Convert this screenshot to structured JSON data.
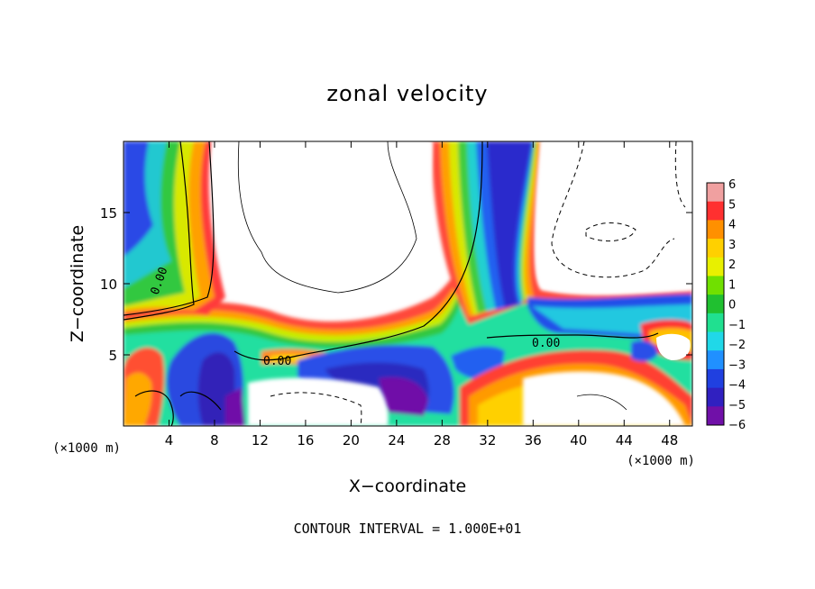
{
  "chart_data": {
    "type": "heatmap",
    "title": "zonal velocity",
    "xlabel": "X−coordinate",
    "ylabel": "Z−coordinate",
    "x_unit_left": "(×1000 m)",
    "x_unit_right": "(×1000 m)",
    "xlim": [
      0,
      50
    ],
    "ylim": [
      0,
      20
    ],
    "x_ticks": [
      4,
      8,
      12,
      16,
      20,
      24,
      28,
      32,
      36,
      40,
      44,
      48
    ],
    "y_ticks": [
      5,
      10,
      15
    ],
    "colorbar": {
      "min": -6,
      "max": 6,
      "ticks": [
        "6",
        "5",
        "4",
        "3",
        "2",
        "1",
        "0",
        "−1",
        "−2",
        "−3",
        "−4",
        "−5",
        "−6"
      ],
      "colors": [
        "#f0a0a0",
        "#ff3030",
        "#ff9000",
        "#ffd000",
        "#e8f000",
        "#70e000",
        "#20c030",
        "#20e090",
        "#20d8e8",
        "#2090ff",
        "#2040e0",
        "#3020c0",
        "#7010a8"
      ]
    },
    "contour_labels": [
      "0.00",
      "0.00",
      "0.00"
    ],
    "footer": "CONTOUR INTERVAL = 1.000E+01",
    "grid": false
  }
}
